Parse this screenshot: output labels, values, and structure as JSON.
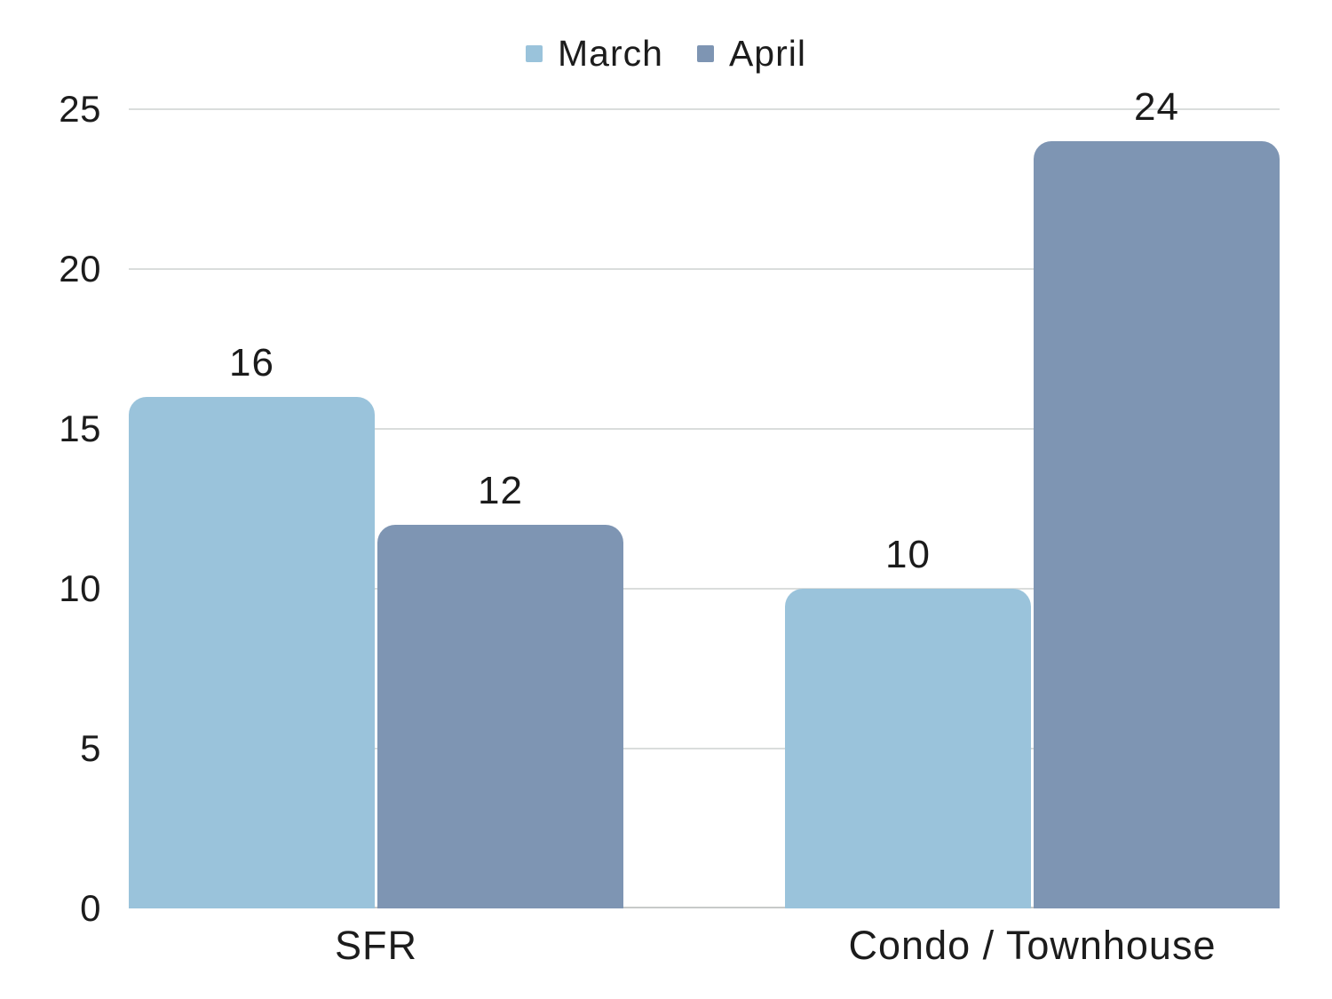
{
  "chart_data": {
    "type": "bar",
    "title": "",
    "xlabel": "",
    "ylabel": "",
    "categories": [
      "SFR",
      "Condo / Townhouse"
    ],
    "series": [
      {
        "name": "March",
        "color": "#9AC3DB",
        "values": [
          16,
          10
        ]
      },
      {
        "name": "April",
        "color": "#7E95B3",
        "values": [
          12,
          24
        ]
      }
    ],
    "ylim": [
      0,
      25
    ],
    "yticks": [
      0,
      5,
      10,
      15,
      20,
      25
    ],
    "grid": true,
    "legend_position": "top"
  },
  "style": {
    "background": "#FFFFFF",
    "text_color": "#1C1C1C",
    "value_label_color": "#1B1B1B",
    "gridline_color": "#DADDDC",
    "axis_line_color": "#C7CAC9"
  }
}
